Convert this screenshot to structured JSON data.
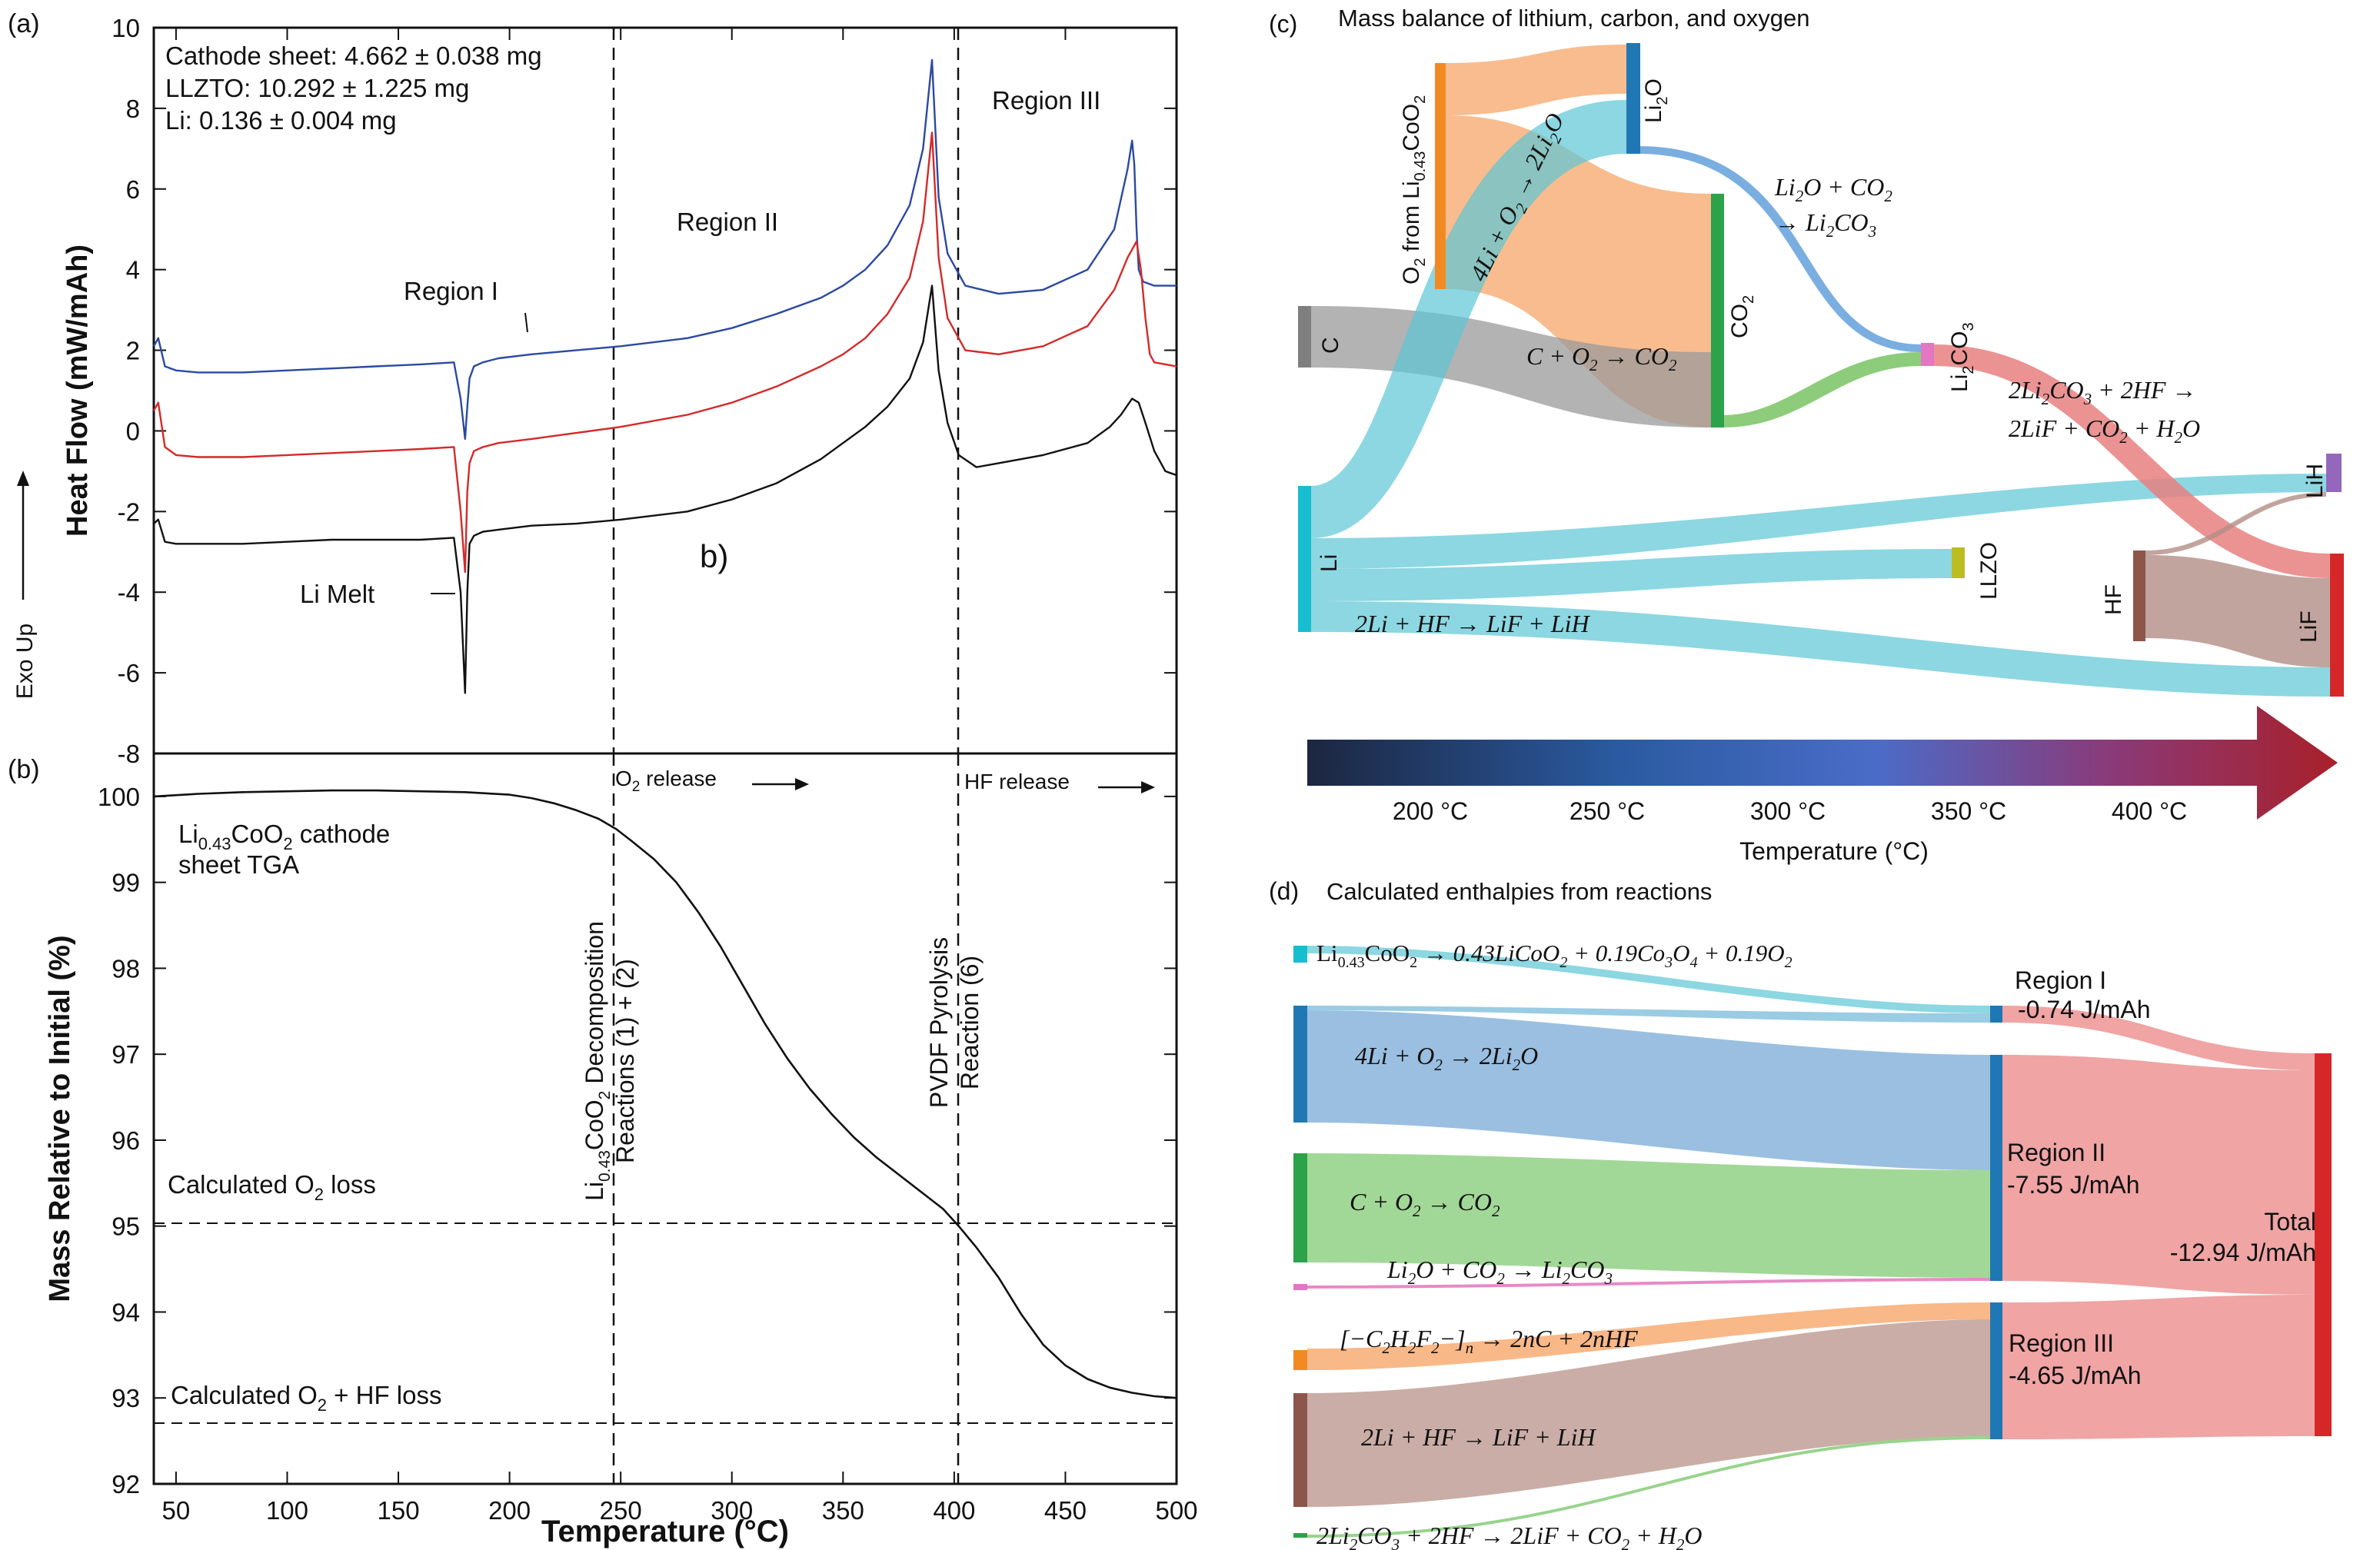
{
  "chart_data": [
    {
      "type": "line",
      "panel": "(a)",
      "xlim": [
        40,
        500
      ],
      "ylim": [
        -8,
        10
      ],
      "yticks": [
        -8,
        -6,
        -4,
        -2,
        0,
        2,
        4,
        6,
        8,
        10
      ],
      "ylabel": "Heat Flow (mW/mAh)",
      "side_label": "Exo Up",
      "info": [
        "Cathode sheet: 4.662 ± 0.038 mg",
        "LLZTO: 10.292 ± 1.225 mg",
        "Li: 0.136 ± 0.004 mg"
      ],
      "annotations": [
        "Region I",
        "Region II",
        "Region III",
        "Li Melt",
        "b)"
      ],
      "vlines": [
        248,
        402
      ],
      "series": [
        {
          "color": "#2b4aa0",
          "x": [
            40,
            42,
            45,
            50,
            60,
            80,
            100,
            120,
            140,
            160,
            175,
            178,
            180,
            181,
            182,
            184,
            188,
            195,
            210,
            230,
            250,
            280,
            300,
            320,
            340,
            350,
            360,
            370,
            380,
            386,
            390,
            393,
            397,
            405,
            420,
            440,
            460,
            472,
            478,
            480,
            481,
            482,
            483,
            485,
            490,
            500
          ],
          "y": [
            2.1,
            2.3,
            1.6,
            1.5,
            1.45,
            1.45,
            1.5,
            1.55,
            1.6,
            1.65,
            1.7,
            0.8,
            -0.2,
            0.6,
            1.3,
            1.6,
            1.7,
            1.8,
            1.9,
            2.0,
            2.1,
            2.3,
            2.55,
            2.9,
            3.3,
            3.6,
            4.0,
            4.6,
            5.6,
            7.0,
            9.2,
            5.8,
            4.4,
            3.6,
            3.4,
            3.5,
            4.0,
            5.0,
            6.5,
            7.2,
            6.6,
            5.0,
            4.0,
            3.7,
            3.6,
            3.6
          ]
        },
        {
          "color": "#d42a2a",
          "x": [
            40,
            42,
            45,
            50,
            60,
            80,
            100,
            120,
            140,
            160,
            175,
            178,
            180,
            181,
            182,
            184,
            188,
            195,
            210,
            230,
            250,
            280,
            300,
            320,
            340,
            350,
            360,
            370,
            380,
            386,
            390,
            393,
            397,
            405,
            420,
            440,
            460,
            472,
            478,
            482,
            484,
            486,
            488,
            490,
            500
          ],
          "y": [
            0.5,
            0.7,
            -0.4,
            -0.6,
            -0.65,
            -0.65,
            -0.6,
            -0.55,
            -0.5,
            -0.45,
            -0.4,
            -2.0,
            -3.5,
            -1.5,
            -0.8,
            -0.5,
            -0.4,
            -0.3,
            -0.2,
            -0.05,
            0.1,
            0.4,
            0.7,
            1.1,
            1.6,
            1.9,
            2.3,
            2.9,
            3.8,
            5.2,
            7.4,
            4.3,
            2.8,
            2.0,
            1.9,
            2.1,
            2.6,
            3.5,
            4.3,
            4.7,
            4.0,
            2.8,
            1.9,
            1.7,
            1.6
          ]
        },
        {
          "color": "#111111",
          "x": [
            40,
            42,
            45,
            50,
            60,
            80,
            100,
            120,
            140,
            160,
            175,
            178,
            180,
            181,
            182,
            184,
            188,
            195,
            210,
            230,
            250,
            280,
            300,
            320,
            340,
            350,
            360,
            370,
            380,
            386,
            390,
            393,
            397,
            402,
            410,
            420,
            440,
            460,
            470,
            475,
            480,
            483,
            486,
            490,
            495,
            500
          ],
          "y": [
            -2.3,
            -2.2,
            -2.75,
            -2.8,
            -2.8,
            -2.8,
            -2.75,
            -2.7,
            -2.7,
            -2.7,
            -2.65,
            -4.0,
            -6.5,
            -4.0,
            -2.8,
            -2.6,
            -2.5,
            -2.45,
            -2.35,
            -2.3,
            -2.2,
            -2.0,
            -1.7,
            -1.3,
            -0.7,
            -0.3,
            0.1,
            0.6,
            1.3,
            2.2,
            3.6,
            1.5,
            0.2,
            -0.6,
            -0.9,
            -0.8,
            -0.6,
            -0.3,
            0.1,
            0.4,
            0.8,
            0.7,
            0.2,
            -0.5,
            -1.0,
            -1.1
          ]
        }
      ]
    },
    {
      "type": "line",
      "panel": "(b)",
      "xlim": [
        40,
        500
      ],
      "ylim": [
        92,
        100.5
      ],
      "xticks": [
        50,
        100,
        150,
        200,
        250,
        300,
        350,
        400,
        450,
        500
      ],
      "yticks": [
        92,
        93,
        94,
        95,
        96,
        97,
        98,
        99,
        100
      ],
      "xlabel": "Temperature (°C)",
      "ylabel": "Mass Relative to Initial (%)",
      "series_label": [
        "Li0.43CoO2 cathode",
        "sheet TGA"
      ],
      "hlines": [
        {
          "y": 95.0,
          "label": "Calculated O2 loss"
        },
        {
          "y": 92.7,
          "label": "Calculated O2 + HF  loss"
        }
      ],
      "vlines": [
        {
          "x": 248,
          "label1": "Li0.43CoO2 Decomposition",
          "label2": "Reactions (1) + (2)"
        },
        {
          "x": 402,
          "label1": "PVDF Pyrolysis",
          "label2": "Reaction (6)"
        }
      ],
      "arrows": [
        "O2 release",
        "HF release"
      ],
      "series": [
        {
          "color": "#111111",
          "x": [
            40,
            60,
            80,
            100,
            120,
            140,
            160,
            180,
            200,
            210,
            220,
            230,
            240,
            248,
            255,
            265,
            275,
            285,
            295,
            305,
            315,
            325,
            335,
            345,
            355,
            365,
            375,
            385,
            395,
            402,
            410,
            420,
            430,
            440,
            450,
            460,
            470,
            480,
            490,
            500
          ],
          "y": [
            100.0,
            100.03,
            100.05,
            100.06,
            100.07,
            100.07,
            100.06,
            100.05,
            100.02,
            99.98,
            99.92,
            99.84,
            99.74,
            99.62,
            99.48,
            99.27,
            99.0,
            98.65,
            98.25,
            97.8,
            97.35,
            96.95,
            96.6,
            96.3,
            96.03,
            95.8,
            95.6,
            95.4,
            95.2,
            95.0,
            94.75,
            94.4,
            93.98,
            93.62,
            93.38,
            93.22,
            93.12,
            93.06,
            93.02,
            93.0
          ]
        }
      ]
    },
    {
      "type": "sankey",
      "panel": "(c)",
      "title": "Mass balance of lithium, carbon, and oxygen",
      "nodes": [
        "O2 from Li0.43CoO2",
        "Li2O",
        "CO2",
        "C",
        "Li2CO3",
        "Li",
        "LiH",
        "LLZO",
        "HF",
        "LiF"
      ],
      "links": [
        {
          "source": "O2 from Li0.43CoO2",
          "target": "Li2O"
        },
        {
          "source": "O2 from Li0.43CoO2",
          "target": "CO2"
        },
        {
          "source": "Li",
          "target": "Li2O",
          "label": "4Li + O2 → 2Li2O"
        },
        {
          "source": "C",
          "target": "CO2",
          "label": "C + O2 → CO2"
        },
        {
          "source": "Li2O",
          "target": "Li2CO3",
          "label": "Li2O + CO2 → Li2CO3"
        },
        {
          "source": "CO2",
          "target": "Li2CO3"
        },
        {
          "source": "Li2CO3",
          "target": "LiF",
          "label": "2Li2CO3 + 2HF → 2LiF + CO2 + H2O"
        },
        {
          "source": "Li",
          "target": "LiH"
        },
        {
          "source": "Li",
          "target": "LLZO"
        },
        {
          "source": "Li",
          "target": "LiF",
          "label": "2Li + HF → LiF + LiH"
        },
        {
          "source": "HF",
          "target": "LiF"
        },
        {
          "source": "HF",
          "target": "LiH"
        }
      ],
      "colorbar": {
        "label": "Temperature (°C)",
        "ticks": [
          "200 °C",
          "250 °C",
          "300 °C",
          "350 °C",
          "400 °C"
        ]
      }
    },
    {
      "type": "sankey",
      "panel": "(d)",
      "title": "Calculated enthalpies from reactions",
      "reactions": [
        "Li0.43CoO2 → 0.43LiCoO2 + 0.19Co3O4 + 0.19O2",
        "4Li + O2 → 2Li2O",
        "C + O2 → CO2",
        "Li2O + CO2 → Li2CO3",
        "[−C2H2F2−]n → 2nC + 2nHF",
        "2Li + HF → LiF + LiH",
        "2Li2CO3 + 2HF → 2LiF + CO2 + H2O"
      ],
      "regions": [
        {
          "name": "Region I",
          "value": "-0.74 J/mAh"
        },
        {
          "name": "Region II",
          "value": "-7.55 J/mAh"
        },
        {
          "name": "Region III",
          "value": "-4.65 J/mAh"
        }
      ],
      "total": {
        "name": "Total",
        "value": "-12.94 J/mAh"
      }
    }
  ]
}
